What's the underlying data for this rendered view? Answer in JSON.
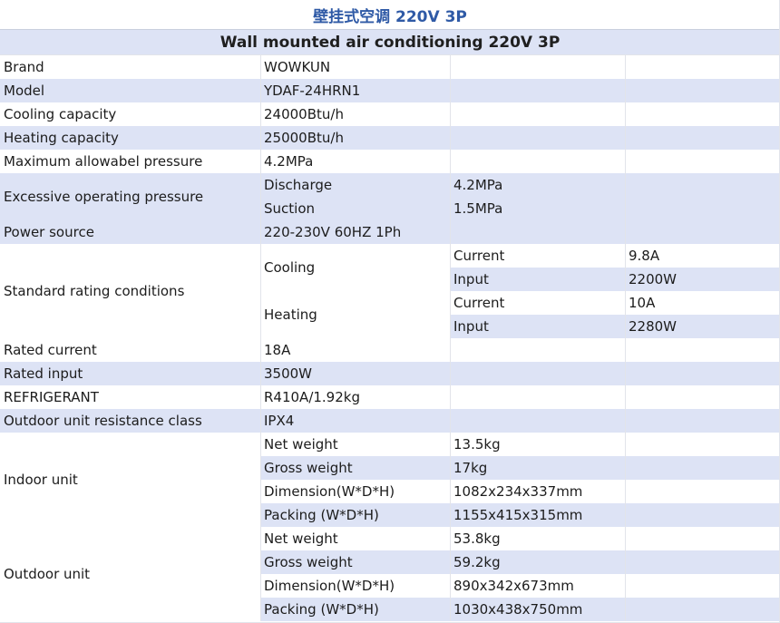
{
  "title_cn": "壁挂式空调 220V 3P",
  "title_en": "Wall mounted air conditioning 220V 3P",
  "brand": {
    "label": "Brand",
    "value": "WOWKUN"
  },
  "model": {
    "label": "Model",
    "value": "YDAF-24HRN1"
  },
  "cooling_capacity": {
    "label": "Cooling capacity",
    "value": "24000Btu/h"
  },
  "heating_capacity": {
    "label": "Heating capacity",
    "value": "25000Btu/h"
  },
  "max_pressure": {
    "label": "Maximum allowabel pressure",
    "value": "4.2MPa"
  },
  "excessive": {
    "label": "Excessive operating pressure",
    "discharge_label": "Discharge",
    "discharge_value": "4.2MPa",
    "suction_label": "Suction",
    "suction_value": "1.5MPa"
  },
  "power_source": {
    "label": "Power source",
    "value": "220-230V 60HZ 1Ph"
  },
  "standard": {
    "label": "Standard rating conditions",
    "cooling": {
      "label": "Cooling",
      "current_label": "Current",
      "current_value": "9.8A",
      "input_label": "Input",
      "input_value": "2200W"
    },
    "heating": {
      "label": "Heating",
      "current_label": "Current",
      "current_value": "10A",
      "input_label": "Input",
      "input_value": "2280W"
    }
  },
  "rated_current": {
    "label": "Rated current",
    "value": "18A"
  },
  "rated_input": {
    "label": "Rated input",
    "value": "3500W"
  },
  "refrigerant": {
    "label": "REFRIGERANT",
    "value": "R410A/1.92kg"
  },
  "resistance": {
    "label": "Outdoor unit resistance class",
    "value": "IPX4"
  },
  "indoor": {
    "label": "Indoor unit",
    "net_label": "Net weight",
    "net_value": "13.5kg",
    "gross_label": "Gross weight",
    "gross_value": "17kg",
    "dim_label": "Dimension(W*D*H)",
    "dim_value": "1082x234x337mm",
    "pack_label": "Packing (W*D*H)",
    "pack_value": "1155x415x315mm"
  },
  "outdoor": {
    "label": "Outdoor unit",
    "net_label": "Net weight",
    "net_value": "53.8kg",
    "gross_label": "Gross weight",
    "gross_value": "59.2kg",
    "dim_label": "Dimension(W*D*H)",
    "dim_value": "890x342x673mm",
    "pack_label": "Packing (W*D*H)",
    "pack_value": "1030x438x750mm"
  }
}
